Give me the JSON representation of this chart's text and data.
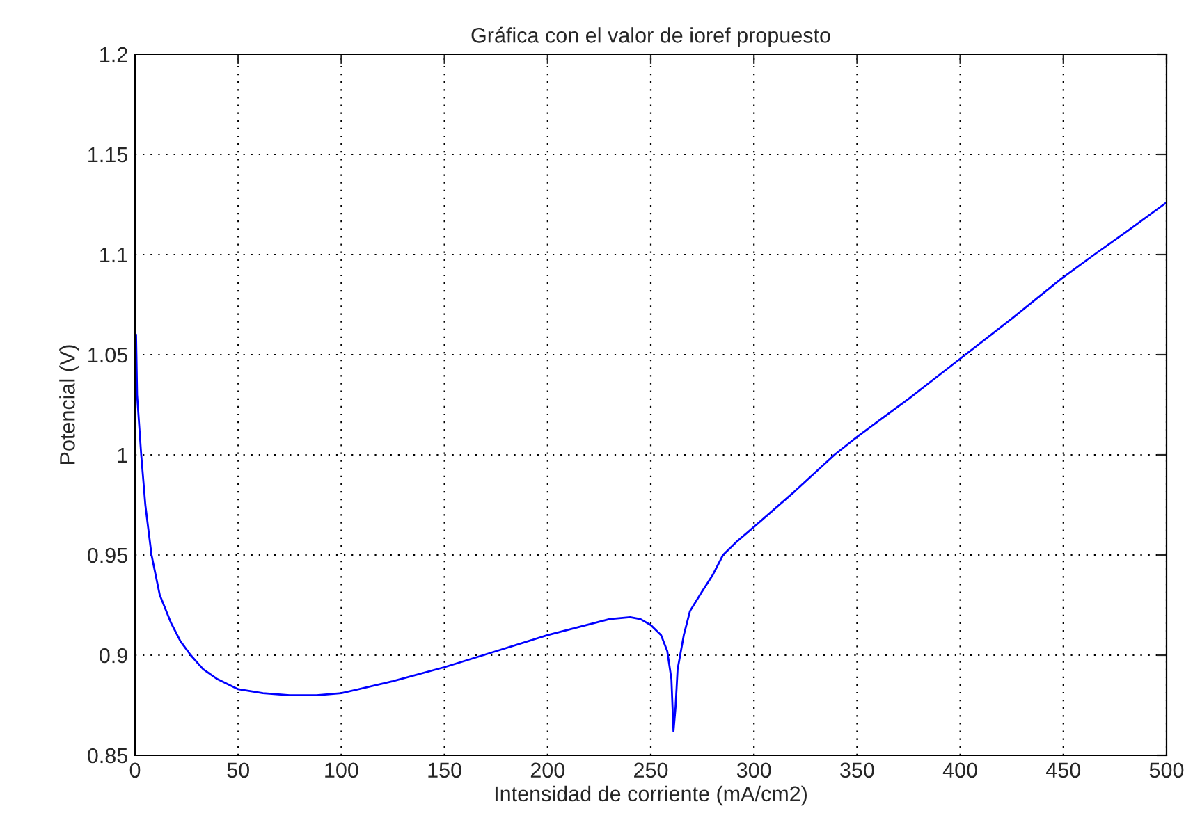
{
  "chart_data": {
    "type": "line",
    "title": "Gráfica con el valor de ioref propuesto",
    "xlabel": "Intensidad de corriente (mA/cm2)",
    "ylabel": "Potencial (V)",
    "series": [
      {
        "color": "#0000ff",
        "x": [
          0.5,
          1,
          3,
          5,
          8,
          12,
          17.5,
          22,
          27,
          33,
          40,
          50,
          62,
          75,
          88,
          100,
          125,
          150,
          175,
          200,
          215,
          230,
          240,
          245,
          250,
          255,
          258,
          260,
          261,
          262,
          263,
          266,
          269,
          275,
          280,
          285,
          292,
          300,
          320,
          339,
          350,
          375,
          400,
          425,
          449,
          465,
          480,
          500
        ],
        "values": [
          1.06,
          1.03,
          1.0,
          0.975,
          0.95,
          0.93,
          0.916,
          0.907,
          0.9,
          0.893,
          0.888,
          0.883,
          0.881,
          0.88,
          0.88,
          0.881,
          0.887,
          0.894,
          0.902,
          0.91,
          0.914,
          0.918,
          0.919,
          0.918,
          0.915,
          0.91,
          0.902,
          0.888,
          0.862,
          0.874,
          0.893,
          0.91,
          0.922,
          0.932,
          0.94,
          0.95,
          0.957,
          0.964,
          0.982,
          1.0,
          1.009,
          1.028,
          1.048,
          1.068,
          1.088,
          1.1,
          1.111,
          1.126
        ]
      }
    ],
    "xlim": [
      0,
      500
    ],
    "ylim": [
      0.85,
      1.2
    ],
    "xticks": [
      0,
      50,
      100,
      150,
      200,
      250,
      300,
      350,
      400,
      450,
      500
    ],
    "yticks": [
      0.85,
      0.9,
      0.95,
      1,
      1.05,
      1.1,
      1.15,
      1.2
    ],
    "grid": true,
    "line_style": "solid",
    "marker": "none"
  }
}
